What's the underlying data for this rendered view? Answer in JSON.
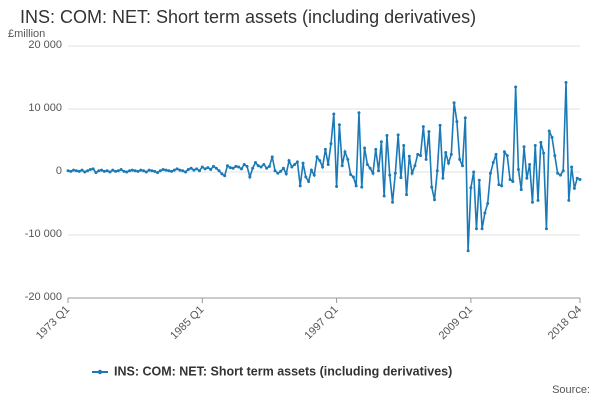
{
  "chart_data": {
    "type": "line",
    "title": "INS: COM: NET: Short term assets (including derivatives)",
    "y_label": "£million",
    "source": "Source:",
    "categories": [
      "1973 Q1",
      null,
      null,
      null,
      null,
      null,
      null,
      null,
      null,
      null,
      null,
      null,
      null,
      null,
      null,
      null,
      null,
      null,
      null,
      null,
      null,
      null,
      null,
      null,
      null,
      null,
      null,
      null,
      null,
      null,
      null,
      null,
      null,
      null,
      null,
      null,
      null,
      null,
      null,
      null,
      null,
      null,
      null,
      null,
      null,
      null,
      null,
      null,
      "1985 Q1",
      null,
      null,
      null,
      null,
      null,
      null,
      null,
      null,
      null,
      null,
      null,
      null,
      null,
      null,
      null,
      null,
      null,
      null,
      null,
      null,
      null,
      null,
      null,
      null,
      null,
      null,
      null,
      null,
      null,
      null,
      null,
      null,
      null,
      null,
      null,
      null,
      null,
      null,
      null,
      null,
      null,
      null,
      null,
      null,
      null,
      null,
      null,
      "1997 Q1",
      null,
      null,
      null,
      null,
      null,
      null,
      null,
      null,
      null,
      null,
      null,
      null,
      null,
      null,
      null,
      null,
      null,
      null,
      null,
      null,
      null,
      null,
      null,
      null,
      null,
      null,
      null,
      null,
      null,
      null,
      null,
      null,
      null,
      null,
      null,
      null,
      null,
      null,
      null,
      null,
      null,
      null,
      null,
      null,
      null,
      null,
      null,
      "2009 Q1",
      null,
      null,
      null,
      null,
      null,
      null,
      null,
      null,
      null,
      null,
      null,
      null,
      null,
      null,
      null,
      null,
      null,
      null,
      null,
      null,
      null,
      null,
      null,
      null,
      null,
      null,
      null,
      null,
      null,
      null,
      null,
      null,
      null,
      null,
      null,
      null,
      null,
      null,
      "2018 Q4"
    ],
    "series": [
      {
        "name": "INS: COM: NET: Short term assets (including derivatives)",
        "color": "#1a7ab8",
        "values": [
          200,
          100,
          300,
          200,
          100,
          300,
          0,
          200,
          400,
          500,
          -100,
          200,
          300,
          100,
          200,
          0,
          300,
          100,
          200,
          400,
          100,
          0,
          200,
          300,
          200,
          100,
          300,
          200,
          0,
          300,
          200,
          100,
          -100,
          200,
          400,
          300,
          200,
          100,
          300,
          500,
          300,
          200,
          0,
          400,
          600,
          300,
          500,
          200,
          800,
          500,
          700,
          400,
          900,
          600,
          200,
          -300,
          -600,
          1000,
          700,
          600,
          900,
          800,
          500,
          1200,
          900,
          -800,
          600,
          1500,
          1000,
          800,
          1200,
          600,
          900,
          2400,
          200,
          -200,
          100,
          600,
          -300,
          1800,
          800,
          1200,
          1600,
          -2200,
          1400,
          -800,
          -1500,
          300,
          -500,
          2400,
          1800,
          800,
          3600,
          1200,
          4500,
          9200,
          -2300,
          7500,
          1000,
          3200,
          2000,
          -400,
          -800,
          -2200,
          9400,
          -2400,
          3800,
          1200,
          600,
          -200,
          3600,
          200,
          4800,
          -3800,
          5800,
          -500,
          -4800,
          -200,
          5900,
          -900,
          4200,
          -3600,
          2500,
          -200,
          1000,
          2800,
          2600,
          7200,
          2000,
          6400,
          -2400,
          -4400,
          200,
          7400,
          -1000,
          3100,
          1400,
          2800,
          11000,
          8000,
          2000,
          1000,
          8600,
          -12500,
          -2500,
          0,
          -9000,
          -1300,
          -9000,
          -6500,
          -5000,
          -200,
          1500,
          2800,
          -2000,
          -2200,
          3200,
          2600,
          -1200,
          -1500,
          13500,
          400,
          -2800,
          4000,
          -1000,
          1200,
          -4800,
          4200,
          -4500,
          4700,
          3000,
          -9000,
          6500,
          5500,
          2600,
          -200,
          -500,
          200,
          14200,
          -4500,
          800,
          -2600,
          -1000,
          -1200
        ]
      }
    ],
    "ylim": [
      -20000,
      20000
    ],
    "yticks": [
      {
        "value": 20000,
        "label": "20 000"
      },
      {
        "value": 10000,
        "label": "10 000"
      },
      0,
      {
        "value": -10000,
        "label": "-10 000"
      },
      {
        "value": -20000,
        "label": "-20 000"
      }
    ],
    "grid": true,
    "legend": "bottom"
  }
}
